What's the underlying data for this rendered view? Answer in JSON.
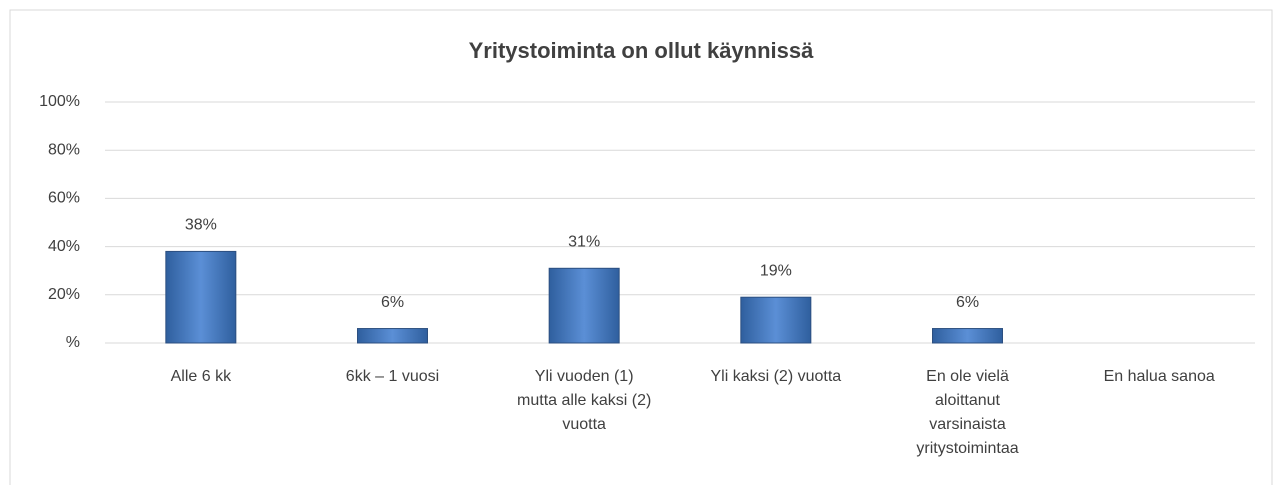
{
  "chart_data": {
    "type": "bar",
    "title": "Yritystoiminta on ollut käynnissä",
    "categories": [
      "Alle 6 kk",
      "6kk – 1 vuosi",
      "Yli vuoden (1)\nmutta alle kaksi (2)\nvuotta",
      "Yli kaksi (2) vuotta",
      "En ole vielä\naloittanut\nvarsinaista\nyritystoimintaa",
      "En halua sanoa"
    ],
    "values": [
      38,
      6,
      31,
      19,
      6,
      null
    ],
    "value_labels": [
      "38%",
      "6%",
      "31%",
      "19%",
      "6%",
      null
    ],
    "color": "#4f81bd",
    "ylim": [
      0,
      100
    ],
    "yticks": [
      {
        "value": 0,
        "label": "%"
      },
      {
        "value": 20,
        "label": "20%"
      },
      {
        "value": 40,
        "label": "40%"
      },
      {
        "value": 60,
        "label": "60%"
      },
      {
        "value": 80,
        "label": "80%"
      },
      {
        "value": 100,
        "label": "100%"
      }
    ],
    "grid": true
  }
}
